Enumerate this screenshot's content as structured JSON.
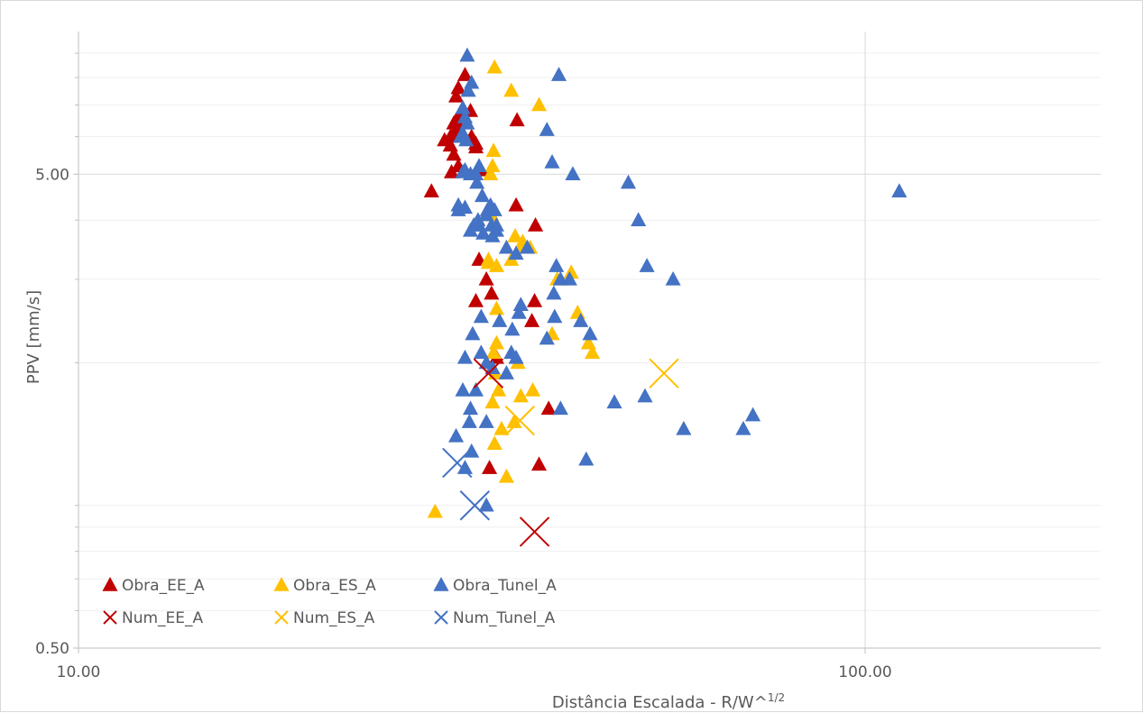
{
  "chart_data": {
    "type": "scatter",
    "title": "",
    "xlabel": "Distância Escalada - R/W^",
    "xlabel_sup": "1/2",
    "ylabel": "PPV [mm/s]",
    "x_scale": "log",
    "y_scale": "log",
    "xlim": [
      10,
      200
    ],
    "ylim": [
      0.5,
      10
    ],
    "x_ticks": [
      {
        "value": 10,
        "label": "10.00"
      },
      {
        "value": 100,
        "label": "100.00"
      }
    ],
    "y_ticks": [
      {
        "value": 0.5,
        "label": "0.50"
      },
      {
        "value": 5,
        "label": "5.00"
      }
    ],
    "grid": "major and minor",
    "legend_position": "bottom-left",
    "series": [
      {
        "name": "Obra_EE_A",
        "marker": "triangle",
        "color": "#c00000",
        "points": [
          [
            30.2,
            7.3
          ],
          [
            30.4,
            7.6
          ],
          [
            30.2,
            6.5
          ],
          [
            30.5,
            6.2
          ],
          [
            30.5,
            6.6
          ],
          [
            30.0,
            6.1
          ],
          [
            30.0,
            6.4
          ],
          [
            29.7,
            6.0
          ],
          [
            29.2,
            5.9
          ],
          [
            29.7,
            5.75
          ],
          [
            30.0,
            5.5
          ],
          [
            30.4,
            5.2
          ],
          [
            29.8,
            5.05
          ],
          [
            31.0,
            8.1
          ],
          [
            31.5,
            6.8
          ],
          [
            31.6,
            6.0
          ],
          [
            32.0,
            5.8
          ],
          [
            32.5,
            5.1
          ],
          [
            32.0,
            5.7
          ],
          [
            28.1,
            4.6
          ],
          [
            36.1,
            6.5
          ],
          [
            36.0,
            4.3
          ],
          [
            38.1,
            3.9
          ],
          [
            32.3,
            3.3
          ],
          [
            33.0,
            3.0
          ],
          [
            32.0,
            2.7
          ],
          [
            33.5,
            2.8
          ],
          [
            38.0,
            2.7
          ],
          [
            37.7,
            2.45
          ],
          [
            34.0,
            2.05
          ],
          [
            39.6,
            1.6
          ],
          [
            33.3,
            1.2
          ],
          [
            38.5,
            1.22
          ]
        ]
      },
      {
        "name": "Obra_ES_A",
        "marker": "triangle",
        "color": "#ffc000",
        "points": [
          [
            33.8,
            8.4
          ],
          [
            35.5,
            7.5
          ],
          [
            38.5,
            7.0
          ],
          [
            33.7,
            5.6
          ],
          [
            33.6,
            5.2
          ],
          [
            33.4,
            5.0
          ],
          [
            33.5,
            4.1
          ],
          [
            35.9,
            3.7
          ],
          [
            36.7,
            3.6
          ],
          [
            36.4,
            3.5
          ],
          [
            37.5,
            3.5
          ],
          [
            35.5,
            3.3
          ],
          [
            33.2,
            3.25
          ],
          [
            33.2,
            3.3
          ],
          [
            34.0,
            3.2
          ],
          [
            34.0,
            2.6
          ],
          [
            34.0,
            2.2
          ],
          [
            35.8,
            1.5
          ],
          [
            40.0,
            2.3
          ],
          [
            36.2,
            2.0
          ],
          [
            37.8,
            1.75
          ],
          [
            40.6,
            3.0
          ],
          [
            42.3,
            3.1
          ],
          [
            43.1,
            2.55
          ],
          [
            45.0,
            2.1
          ],
          [
            44.5,
            2.2
          ],
          [
            33.8,
            1.35
          ],
          [
            33.6,
            1.65
          ],
          [
            34.5,
            1.45
          ],
          [
            34.2,
            1.75
          ],
          [
            36.5,
            1.7
          ],
          [
            28.4,
            0.97
          ],
          [
            33.7,
            2.1
          ],
          [
            33.9,
            1.9
          ],
          [
            35.0,
            1.15
          ]
        ]
      },
      {
        "name": "Obra_Tunel_A",
        "marker": "triangle",
        "color": "#4472c4",
        "points": [
          [
            31.2,
            8.9
          ],
          [
            31.6,
            7.8
          ],
          [
            31.3,
            7.5
          ],
          [
            30.8,
            6.9
          ],
          [
            31.0,
            6.6
          ],
          [
            31.2,
            6.4
          ],
          [
            30.8,
            6.1
          ],
          [
            30.6,
            6.0
          ],
          [
            31.1,
            5.9
          ],
          [
            32.3,
            5.2
          ],
          [
            32.0,
            5.0
          ],
          [
            30.8,
            5.05
          ],
          [
            31.0,
            5.1
          ],
          [
            31.5,
            5.0
          ],
          [
            32.1,
            4.8
          ],
          [
            32.6,
            4.5
          ],
          [
            33.0,
            4.1
          ],
          [
            33.1,
            4.2
          ],
          [
            33.4,
            4.3
          ],
          [
            33.8,
            4.2
          ],
          [
            32.2,
            4.0
          ],
          [
            32.3,
            3.9
          ],
          [
            32.7,
            3.75
          ],
          [
            33.5,
            3.9
          ],
          [
            31.5,
            3.8
          ],
          [
            30.4,
            4.2
          ],
          [
            30.4,
            4.3
          ],
          [
            31.0,
            4.25
          ],
          [
            31.8,
            3.9
          ],
          [
            33.6,
            3.7
          ],
          [
            34.0,
            3.8
          ],
          [
            35.0,
            3.5
          ],
          [
            36.0,
            3.4
          ],
          [
            37.2,
            3.5
          ],
          [
            40.5,
            3.2
          ],
          [
            41.0,
            3.0
          ],
          [
            40.2,
            2.8
          ],
          [
            40.3,
            2.5
          ],
          [
            36.5,
            2.65
          ],
          [
            36.3,
            2.55
          ],
          [
            35.6,
            2.35
          ],
          [
            36.0,
            2.05
          ],
          [
            35.0,
            1.9
          ],
          [
            33.6,
            1.95
          ],
          [
            33.0,
            2.0
          ],
          [
            32.5,
            2.1
          ],
          [
            31.7,
            2.3
          ],
          [
            32.0,
            1.75
          ],
          [
            31.5,
            1.6
          ],
          [
            33.0,
            1.5
          ],
          [
            32.5,
            2.5
          ],
          [
            34.0,
            3.9
          ],
          [
            40.8,
            8.1
          ],
          [
            39.4,
            6.2
          ],
          [
            42.5,
            5.0
          ],
          [
            40.0,
            5.3
          ],
          [
            50.0,
            4.8
          ],
          [
            51.5,
            4.0
          ],
          [
            52.8,
            3.2
          ],
          [
            57.0,
            3.0
          ],
          [
            41.0,
            1.6
          ],
          [
            48.0,
            1.65
          ],
          [
            70.0,
            1.45
          ],
          [
            52.5,
            1.7
          ],
          [
            31.6,
            1.3
          ],
          [
            31.4,
            1.5
          ],
          [
            30.2,
            1.4
          ],
          [
            31.0,
            1.2
          ],
          [
            33.0,
            1.0
          ],
          [
            30.8,
            1.75
          ],
          [
            31.0,
            2.05
          ],
          [
            34.3,
            2.45
          ],
          [
            35.5,
            2.1
          ],
          [
            42.1,
            3.0
          ],
          [
            39.4,
            2.25
          ],
          [
            43.5,
            2.45
          ],
          [
            44.7,
            2.3
          ],
          [
            110.5,
            4.6
          ],
          [
            72.0,
            1.55
          ],
          [
            58.8,
            1.45
          ],
          [
            44.2,
            1.25
          ]
        ]
      },
      {
        "name": "Num_EE_A",
        "marker": "x",
        "color": "#c00000",
        "points": [
          [
            33.2,
            1.9
          ],
          [
            38.0,
            0.88
          ]
        ]
      },
      {
        "name": "Num_ES_A",
        "marker": "x",
        "color": "#ffc000",
        "points": [
          [
            55.5,
            1.9
          ],
          [
            36.4,
            1.51
          ]
        ]
      },
      {
        "name": "Num_Tunel_A",
        "marker": "x",
        "color": "#4472c4",
        "points": [
          [
            30.3,
            1.23
          ],
          [
            31.9,
            1.0
          ]
        ]
      }
    ]
  }
}
